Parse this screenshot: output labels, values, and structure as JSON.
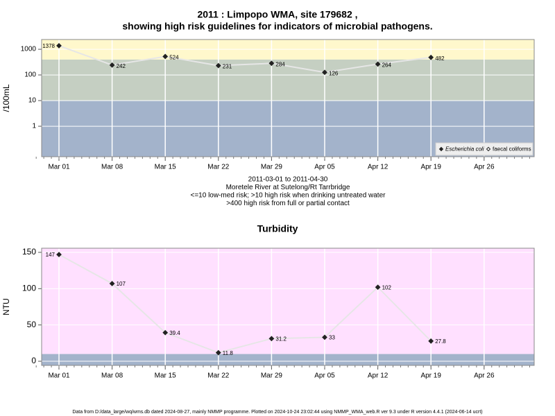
{
  "chart_data": [
    {
      "type": "line",
      "title": [
        "2011 : Limpopo WMA, site 179682 ,",
        "showing high risk guidelines for indicators of microbial pathogens."
      ],
      "notes": [
        "2011-03-01 to 2011-04-30",
        "Moretele River at Sutelong/Rt Tarrbridge",
        "<=10 low-med risk; >10 high risk when drinking untreated water",
        ">400 high risk from full or partial contact"
      ],
      "ylabel": "/100mL",
      "log_scale": true,
      "categories": [
        "Mar 01",
        "Mar 08",
        "Mar 15",
        "Mar 22",
        "Mar 29",
        "Apr 05",
        "Apr 12",
        "Apr 19",
        "Apr 26"
      ],
      "series": [
        {
          "name": "Escherichia coli",
          "color": "#222222",
          "values": [
            1378,
            242,
            524,
            231,
            284,
            126,
            264,
            482,
            null
          ]
        },
        {
          "name": "faecal coliforms",
          "color": "#ffffff",
          "values": [
            null,
            null,
            null,
            null,
            null,
            null,
            null,
            null,
            null
          ]
        }
      ],
      "ylim": [
        0.065,
        2400
      ],
      "yticks": [
        1,
        10,
        100,
        1000
      ],
      "thresholds": [
        10,
        400
      ],
      "band_colors": [
        "#a3b3cb",
        "#c5cfc2",
        "#fff8cc"
      ],
      "line_color": "#e6e6e6",
      "grid": true,
      "legend": "bottom-right"
    },
    {
      "type": "line",
      "title": [
        "Turbidity"
      ],
      "ylabel": "NTU",
      "log_scale": false,
      "categories": [
        "Mar 01",
        "Mar 08",
        "Mar 15",
        "Mar 22",
        "Mar 29",
        "Apr 05",
        "Apr 12",
        "Apr 19",
        "Apr 26"
      ],
      "series": [
        {
          "name": "Turbidity",
          "color": "#222222",
          "values": [
            147,
            107,
            39.4,
            11.8,
            31.2,
            33,
            102,
            27.8,
            null
          ]
        }
      ],
      "ylim": [
        -5.7,
        155.7
      ],
      "yticks": [
        0,
        50,
        100,
        150
      ],
      "thresholds": [
        10
      ],
      "band_colors": [
        "#a3b3cb",
        "#ffe0ff"
      ],
      "line_color": "#e6e6e6",
      "grid": true
    }
  ],
  "footer": "Data from D:/data_large/wq/wms.db dated 2024-08-27, mainly NMMP programme. Plotted on 2024-10-24 23:02:44 using NMMP_WMA_web.R ver 9.3 under R version 4.4.1 (2024-06-14 ucrt)"
}
